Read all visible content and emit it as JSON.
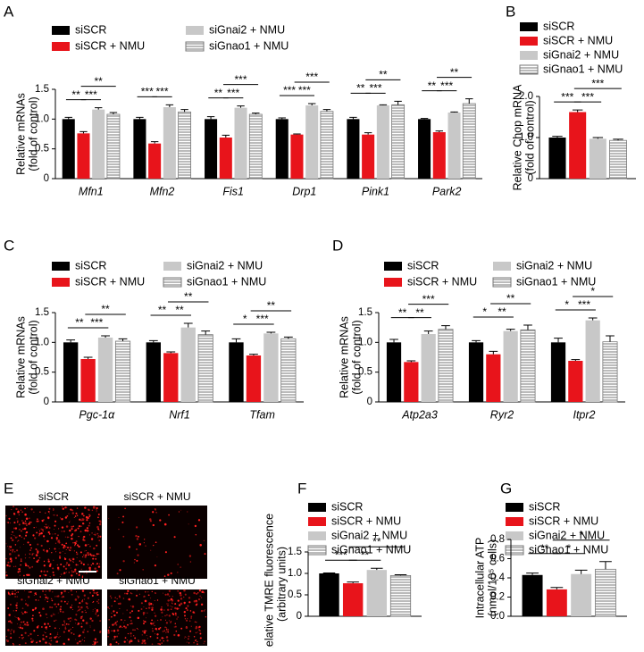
{
  "chart_data": [
    {
      "panel": "A",
      "type": "bar",
      "ylabel": [
        "Relative mRNAs",
        "(fold of control)"
      ],
      "categories": [
        "Mfn1",
        "Mfn2",
        "Fis1",
        "Drp1",
        "Pink1",
        "Park2"
      ],
      "ylim": [
        0,
        1.5
      ],
      "yticks": [
        0,
        0.5,
        {
          "value": 1,
          "label": "1.0"
        },
        1.5
      ],
      "series": [
        {
          "name": "siSCR",
          "color": "#000000",
          "values": [
            1.0,
            1.0,
            1.0,
            1.0,
            1.0,
            1.0
          ],
          "errors": [
            0.03,
            0.03,
            0.04,
            0.02,
            0.03,
            0.01
          ]
        },
        {
          "name": "siSCR + NMU",
          "color": "#e8141b",
          "values": [
            0.76,
            0.59,
            0.69,
            0.74,
            0.74,
            0.78
          ],
          "errors": [
            0.03,
            0.03,
            0.04,
            0.01,
            0.03,
            0.02
          ]
        },
        {
          "name": "siGnai2 + NMU",
          "color": "#c8c8c8",
          "values": [
            1.16,
            1.2,
            1.19,
            1.23,
            1.23,
            1.11
          ],
          "errors": [
            0.03,
            0.04,
            0.03,
            0.03,
            0.01,
            0.01
          ]
        },
        {
          "name": "siGnao1 + NMU",
          "color": "#ffffff",
          "pattern": "horizontal-lines",
          "values": [
            1.08,
            1.12,
            1.08,
            1.13,
            1.24,
            1.26
          ],
          "errors": [
            0.03,
            0.04,
            0.02,
            0.03,
            0.06,
            0.08
          ]
        }
      ],
      "comparisons": [
        {
          "category": 0,
          "pair": [
            0,
            1
          ],
          "label": "**"
        },
        {
          "category": 0,
          "pair": [
            1,
            2
          ],
          "label": "***"
        },
        {
          "category": 0,
          "pair": [
            1,
            3
          ],
          "label": "**"
        },
        {
          "category": 1,
          "pair": [
            0,
            1
          ],
          "label": "***"
        },
        {
          "category": 1,
          "pair": [
            1,
            2
          ],
          "label": "***"
        },
        {
          "category": 2,
          "pair": [
            0,
            1
          ],
          "label": "**"
        },
        {
          "category": 2,
          "pair": [
            1,
            2
          ],
          "label": "***"
        },
        {
          "category": 2,
          "pair": [
            1,
            3
          ],
          "label": "***"
        },
        {
          "category": 3,
          "pair": [
            0,
            1
          ],
          "label": "***"
        },
        {
          "category": 3,
          "pair": [
            1,
            2
          ],
          "label": "***"
        },
        {
          "category": 3,
          "pair": [
            1,
            3
          ],
          "label": "***"
        },
        {
          "category": 4,
          "pair": [
            0,
            1
          ],
          "label": "**"
        },
        {
          "category": 4,
          "pair": [
            1,
            2
          ],
          "label": "***"
        },
        {
          "category": 4,
          "pair": [
            1,
            3
          ],
          "label": "**"
        },
        {
          "category": 5,
          "pair": [
            0,
            1
          ],
          "label": "**"
        },
        {
          "category": 5,
          "pair": [
            1,
            2
          ],
          "label": "***"
        },
        {
          "category": 5,
          "pair": [
            1,
            3
          ],
          "label": "**"
        }
      ]
    },
    {
      "panel": "B",
      "type": "bar",
      "ylabel": [
        "Relative Chop mRNA",
        "(fold of control)"
      ],
      "categories": [
        null
      ],
      "ylim": [
        0,
        2
      ],
      "yticks": [
        0,
        {
          "value": 1,
          "label": "1.0"
        },
        {
          "value": 2,
          "label": "2.0"
        }
      ],
      "series": [
        {
          "name": "siSCR",
          "color": "#000000",
          "values": [
            1.0
          ],
          "errors": [
            0.03
          ]
        },
        {
          "name": "siSCR + NMU",
          "color": "#e8141b",
          "values": [
            1.62
          ],
          "errors": [
            0.05
          ]
        },
        {
          "name": "siGnai2 + NMU",
          "color": "#c8c8c8",
          "values": [
            0.97
          ],
          "errors": [
            0.03
          ]
        },
        {
          "name": "siGnao1 + NMU",
          "color": "#ffffff",
          "pattern": "horizontal-lines",
          "values": [
            0.93
          ],
          "errors": [
            0.03
          ]
        }
      ],
      "comparisons": [
        {
          "category": 0,
          "pair": [
            0,
            1
          ],
          "label": "***"
        },
        {
          "category": 0,
          "pair": [
            1,
            2
          ],
          "label": "***"
        },
        {
          "category": 0,
          "pair": [
            1,
            3
          ],
          "label": "***"
        }
      ]
    },
    {
      "panel": "C",
      "type": "bar",
      "ylabel": [
        "Relative mRNAs",
        "(fold of control)"
      ],
      "categories": [
        "Pgc-1α",
        "Nrf1",
        "Tfam"
      ],
      "ylim": [
        0,
        1.5
      ],
      "yticks": [
        0,
        0.5,
        {
          "value": 1,
          "label": "1.0"
        },
        1.5
      ],
      "series": [
        {
          "name": "siSCR",
          "color": "#000000",
          "values": [
            1.0,
            1.0,
            1.0
          ],
          "errors": [
            0.04,
            0.03,
            0.06
          ]
        },
        {
          "name": "siSCR + NMU",
          "color": "#e8141b",
          "values": [
            0.72,
            0.82,
            0.78
          ],
          "errors": [
            0.03,
            0.02,
            0.02
          ]
        },
        {
          "name": "siGnai2 + NMU",
          "color": "#c8c8c8",
          "values": [
            1.08,
            1.25,
            1.15
          ],
          "errors": [
            0.03,
            0.07,
            0.02
          ]
        },
        {
          "name": "siGnao1 + NMU",
          "color": "#ffffff",
          "pattern": "horizontal-lines",
          "values": [
            1.02,
            1.13,
            1.06
          ],
          "errors": [
            0.04,
            0.06,
            0.03
          ]
        }
      ],
      "comparisons": [
        {
          "category": 0,
          "pair": [
            0,
            1
          ],
          "label": "**"
        },
        {
          "category": 0,
          "pair": [
            1,
            2
          ],
          "label": "***"
        },
        {
          "category": 0,
          "pair": [
            1,
            3
          ],
          "label": "**"
        },
        {
          "category": 1,
          "pair": [
            0,
            1
          ],
          "label": "**"
        },
        {
          "category": 1,
          "pair": [
            1,
            2
          ],
          "label": "**"
        },
        {
          "category": 1,
          "pair": [
            1,
            3
          ],
          "label": "**"
        },
        {
          "category": 2,
          "pair": [
            0,
            1
          ],
          "label": "*"
        },
        {
          "category": 2,
          "pair": [
            1,
            2
          ],
          "label": "***"
        },
        {
          "category": 2,
          "pair": [
            1,
            3
          ],
          "label": "**"
        }
      ]
    },
    {
      "panel": "D",
      "type": "bar",
      "ylabel": [
        "Relative mRNAs",
        "(fold of control)"
      ],
      "categories": [
        "Atp2a3",
        "Ryr2",
        "Itpr2"
      ],
      "ylim": [
        0,
        1.5
      ],
      "yticks": [
        0,
        0.5,
        {
          "value": 1,
          "label": "1.0"
        },
        1.5
      ],
      "series": [
        {
          "name": "siSCR",
          "color": "#000000",
          "values": [
            1.0,
            1.0,
            1.0
          ],
          "errors": [
            0.05,
            0.03,
            0.07
          ]
        },
        {
          "name": "siSCR + NMU",
          "color": "#e8141b",
          "values": [
            0.67,
            0.8,
            0.69
          ],
          "errors": [
            0.02,
            0.05,
            0.02
          ]
        },
        {
          "name": "siGnai2 + NMU",
          "color": "#c8c8c8",
          "values": [
            1.14,
            1.19,
            1.37
          ],
          "errors": [
            0.05,
            0.03,
            0.04
          ]
        },
        {
          "name": "siGnao1 + NMU",
          "color": "#ffffff",
          "pattern": "horizontal-lines",
          "values": [
            1.22,
            1.21,
            1.01
          ],
          "errors": [
            0.06,
            0.08,
            0.1
          ]
        }
      ],
      "comparisons": [
        {
          "category": 0,
          "pair": [
            0,
            1
          ],
          "label": "**"
        },
        {
          "category": 0,
          "pair": [
            1,
            2
          ],
          "label": "**"
        },
        {
          "category": 0,
          "pair": [
            1,
            3
          ],
          "label": "***"
        },
        {
          "category": 1,
          "pair": [
            0,
            1
          ],
          "label": "*"
        },
        {
          "category": 1,
          "pair": [
            1,
            2
          ],
          "label": "**"
        },
        {
          "category": 1,
          "pair": [
            1,
            3
          ],
          "label": "**"
        },
        {
          "category": 2,
          "pair": [
            0,
            1
          ],
          "label": "*"
        },
        {
          "category": 2,
          "pair": [
            1,
            2
          ],
          "label": "***"
        },
        {
          "category": 2,
          "pair": [
            1,
            3
          ],
          "label": "*"
        }
      ]
    },
    {
      "panel": "F",
      "type": "bar",
      "ylabel": [
        "Relative TMRE fluorescence",
        "(arbitrary units)"
      ],
      "categories": [
        null
      ],
      "ylim": [
        0,
        1.5
      ],
      "yticks": [
        0,
        0.5,
        {
          "value": 1,
          "label": "1.0"
        },
        1.5
      ],
      "series": [
        {
          "name": "siSCR",
          "color": "#000000",
          "values": [
            1.0
          ],
          "errors": [
            0.01
          ]
        },
        {
          "name": "siSCR + NMU",
          "color": "#e8141b",
          "values": [
            0.77
          ],
          "errors": [
            0.03
          ]
        },
        {
          "name": "siGnai2 + NMU",
          "color": "#c8c8c8",
          "values": [
            1.08
          ],
          "errors": [
            0.04
          ]
        },
        {
          "name": "siGnao1 + NMU",
          "color": "#ffffff",
          "pattern": "horizontal-lines",
          "values": [
            0.95
          ],
          "errors": [
            0.02
          ]
        }
      ],
      "comparisons": [
        {
          "category": 0,
          "pair": [
            0,
            1
          ],
          "label": "***"
        },
        {
          "category": 0,
          "pair": [
            1,
            2
          ],
          "label": "**"
        },
        {
          "category": 0,
          "pair": [
            1,
            3
          ],
          "label": "**"
        }
      ]
    },
    {
      "panel": "G",
      "type": "bar",
      "ylabel": [
        "Intracellular ATP",
        "(nmol/10⁵ cells)"
      ],
      "categories": [
        null
      ],
      "ylim": [
        0,
        0.8
      ],
      "yticks": [
        {
          "value": 0,
          "label": "0.0"
        },
        0.2,
        0.4,
        0.6,
        0.8
      ],
      "series": [
        {
          "name": "siSCR",
          "color": "#000000",
          "values": [
            0.43
          ],
          "errors": [
            0.02
          ]
        },
        {
          "name": "siSCR + NMU",
          "color": "#e8141b",
          "values": [
            0.28
          ],
          "errors": [
            0.02
          ]
        },
        {
          "name": "siGnai2 + NMU",
          "color": "#c8c8c8",
          "values": [
            0.44
          ],
          "errors": [
            0.04
          ]
        },
        {
          "name": "siGnao1 + NMU",
          "color": "#ffffff",
          "pattern": "horizontal-lines",
          "values": [
            0.49
          ],
          "errors": [
            0.08
          ]
        }
      ],
      "comparisons": [
        {
          "category": 0,
          "pair": [
            0,
            1
          ],
          "label": "**"
        },
        {
          "category": 0,
          "pair": [
            1,
            2
          ],
          "label": "*"
        },
        {
          "category": 0,
          "pair": [
            1,
            3
          ],
          "label": "*"
        }
      ]
    }
  ],
  "micrographs": {
    "panel": "E",
    "labels": [
      "siSCR",
      "siSCR + NMU",
      "siGnai2 + NMU",
      "siGnao1 + NMU"
    ]
  }
}
